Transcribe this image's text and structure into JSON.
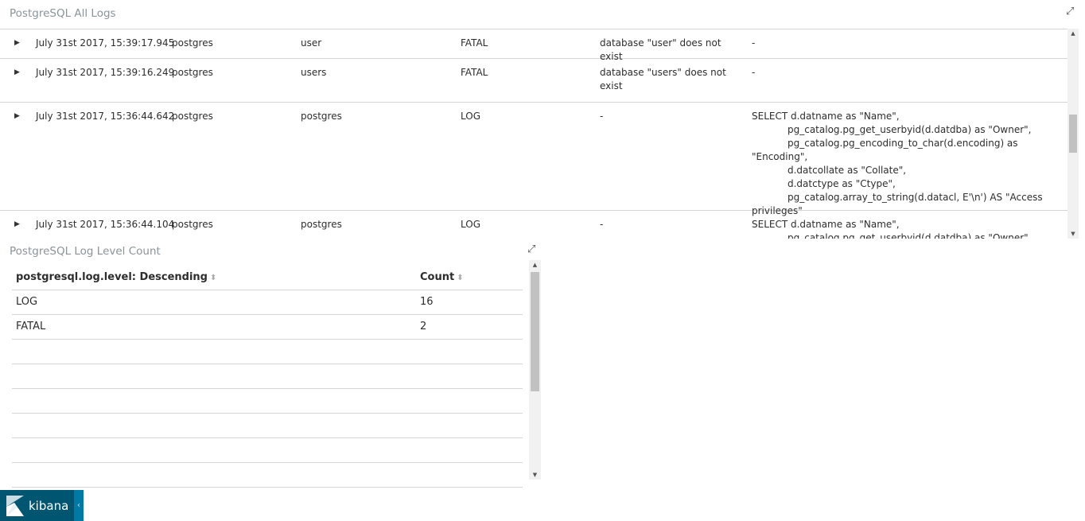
{
  "logs_panel": {
    "title": "PostgreSQL All Logs",
    "expand_icon": "expand-arrows-icon",
    "rows": [
      {
        "time": "July 31st 2017, 15:39:17.945",
        "user": "postgres",
        "database": "user",
        "level": "FATAL",
        "message": "database \"user\" does not exist",
        "query": [
          "-"
        ]
      },
      {
        "time": "July 31st 2017, 15:39:16.249",
        "user": "postgres",
        "database": "users",
        "level": "FATAL",
        "message": "database \"users\" does not exist",
        "query": [
          "-"
        ]
      },
      {
        "time": "July 31st 2017, 15:36:44.642",
        "user": "postgres",
        "database": "postgres",
        "level": "LOG",
        "message": "-",
        "query": [
          "SELECT d.datname as \"Name\",",
          "pg_catalog.pg_get_userbyid(d.datdba) as \"Owner\",",
          "pg_catalog.pg_encoding_to_char(d.encoding) as \"Encoding\",",
          "d.datcollate as \"Collate\",",
          "d.datctype as \"Ctype\",",
          "pg_catalog.array_to_string(d.datacl, E'\\n') AS \"Access privileges\""
        ]
      },
      {
        "time": "July 31st 2017, 15:36:44.104",
        "user": "postgres",
        "database": "postgres",
        "level": "LOG",
        "message": "-",
        "query": [
          "SELECT d.datname as \"Name\",",
          "pg_catalog.pg_get_userbyid(d.datdba) as \"Owner\","
        ]
      }
    ]
  },
  "count_panel": {
    "title": "PostgreSQL Log Level Count",
    "columns": [
      "postgresql.log.level: Descending",
      "Count"
    ],
    "rows": [
      {
        "level": "LOG",
        "count": "16"
      },
      {
        "level": "FATAL",
        "count": "2"
      }
    ]
  },
  "brand": {
    "name": "kibana",
    "color": "#005571",
    "toggle_color": "#0079a5"
  }
}
